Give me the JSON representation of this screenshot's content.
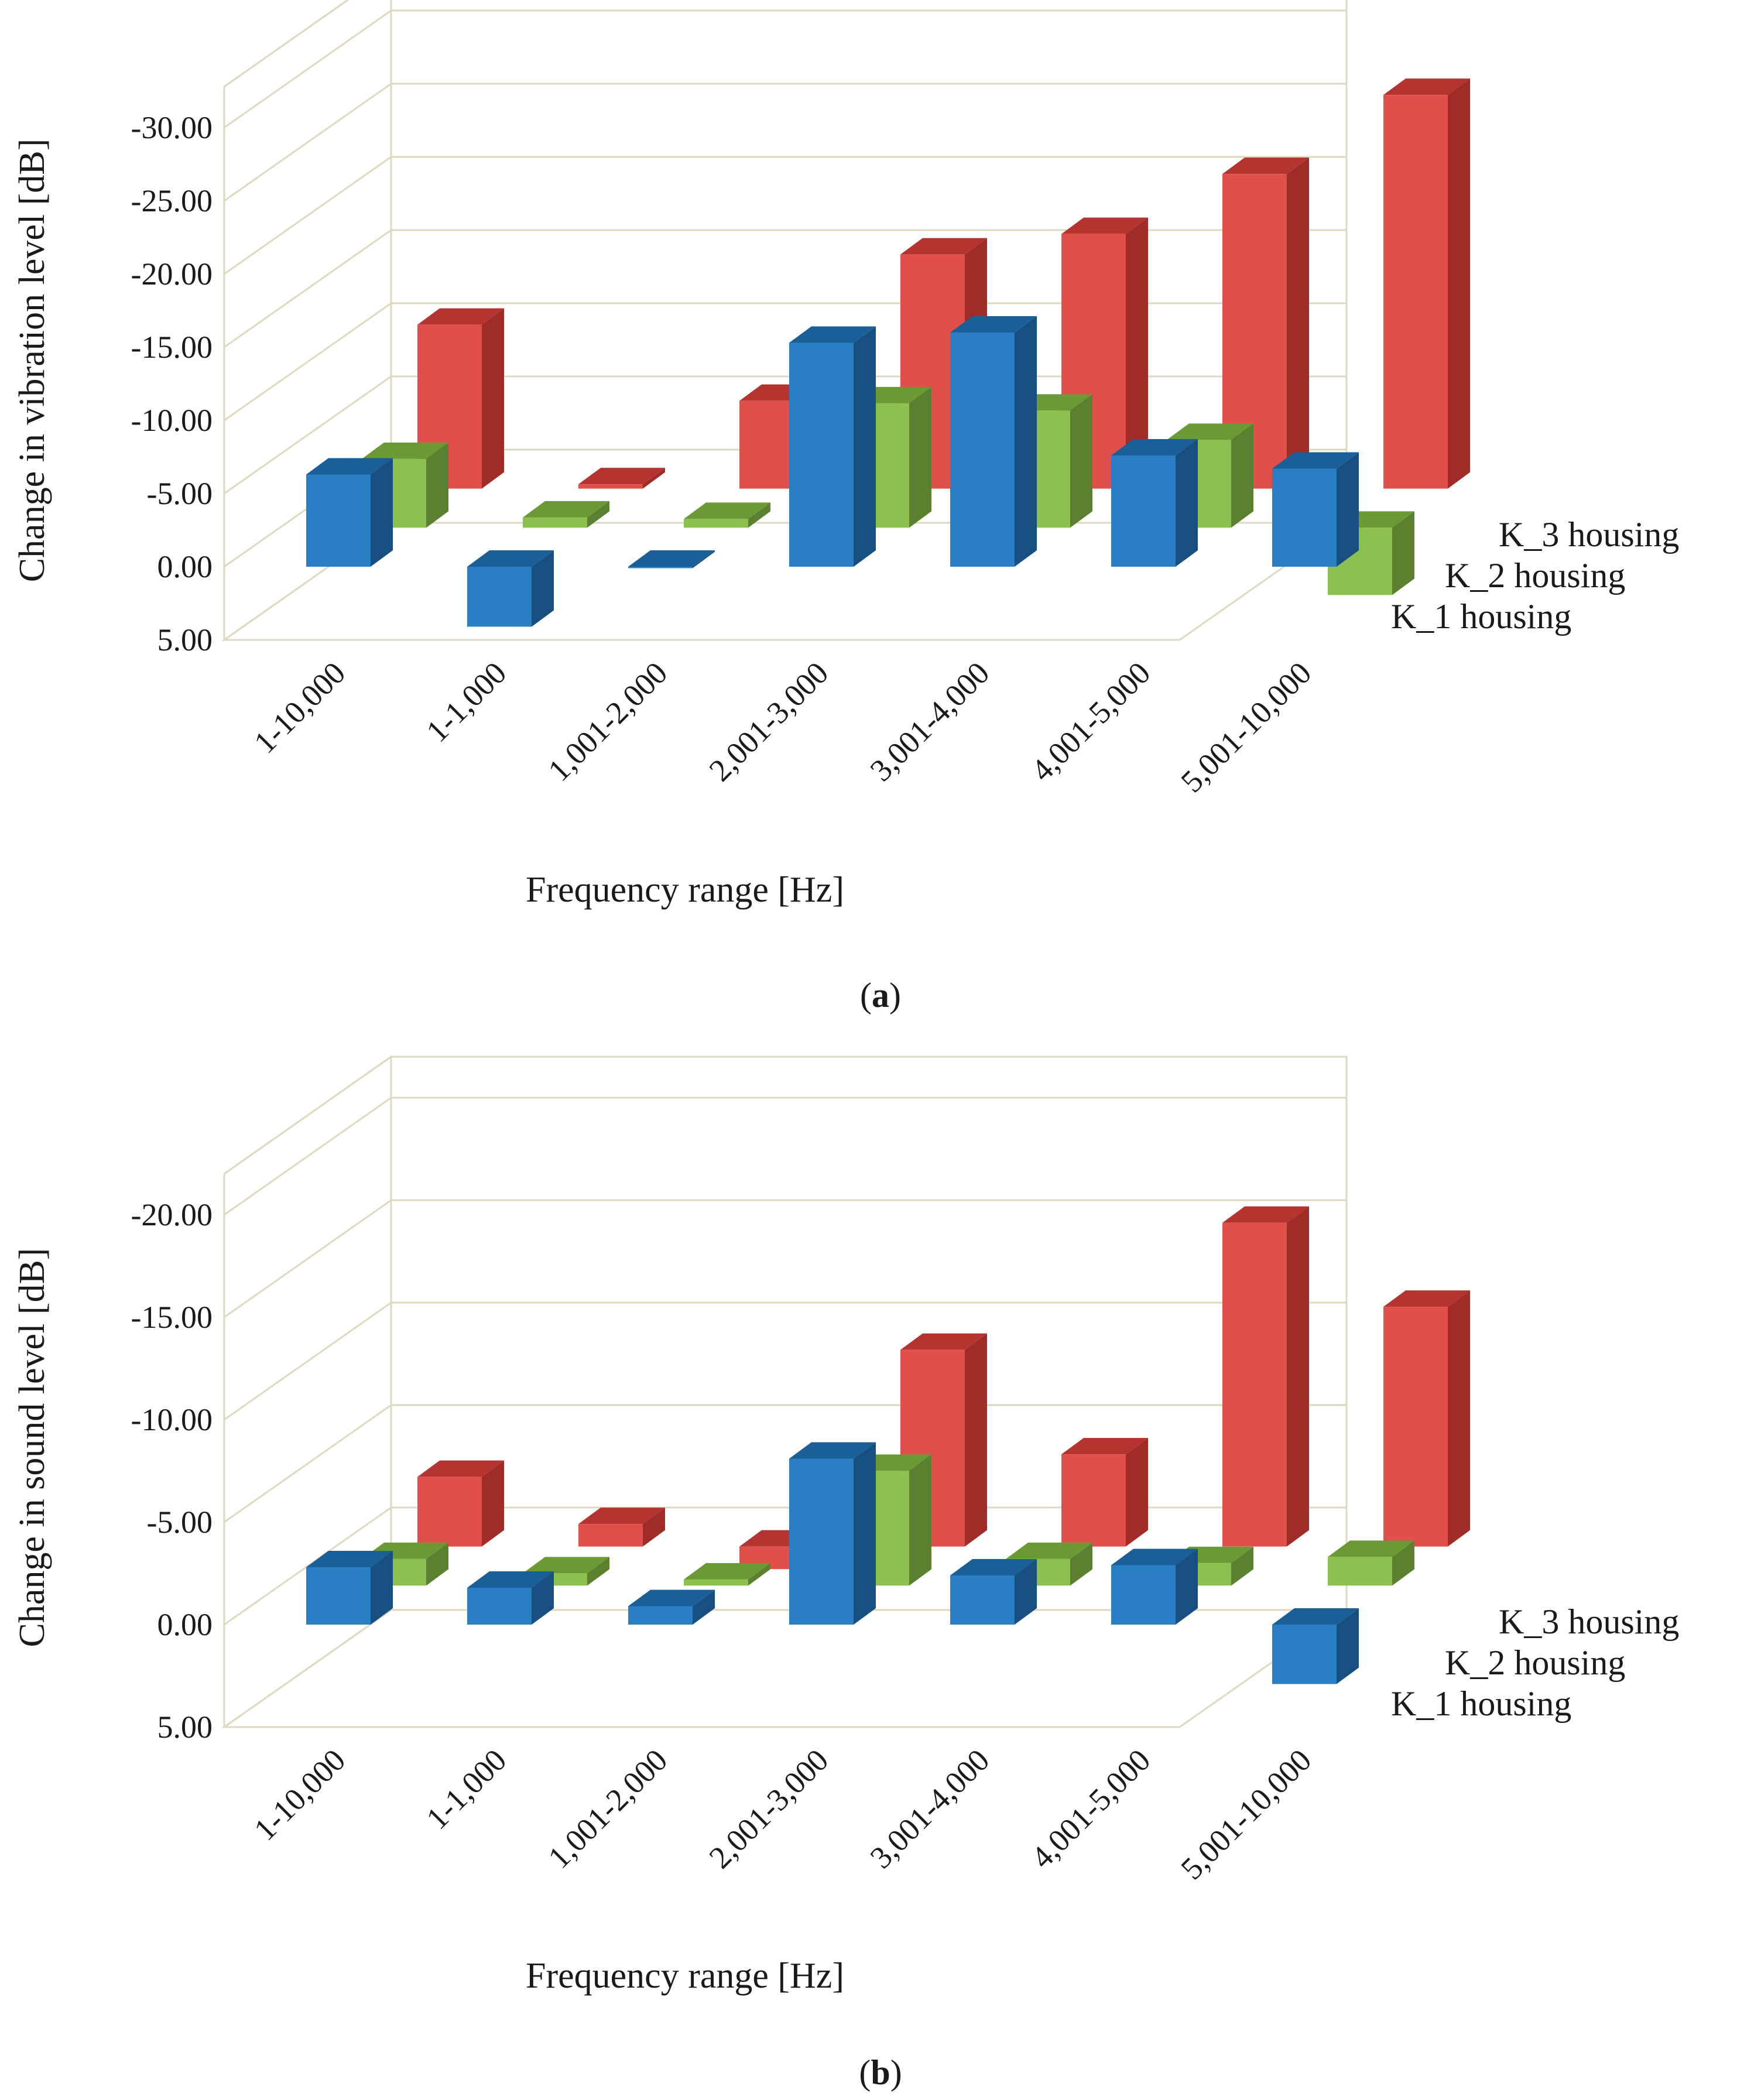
{
  "colors": {
    "K_1 housing": {
      "front": "#2a7fc4",
      "top": "#1b5f99",
      "side": "#174f80"
    },
    "K_2 housing": {
      "front": "#8dc14f",
      "top": "#6b9a35",
      "side": "#5a8030"
    },
    "K_3 housing": {
      "front": "#e04f4a",
      "top": "#b53430",
      "side": "#a02c28"
    },
    "grid": "#ded9bf"
  },
  "chart_data": [
    {
      "type": "bar",
      "panel_label": "a",
      "ylabel": "Change in vibration level [dB]",
      "xlabel": "Frequency range [Hz]",
      "ylim": [
        5,
        -30
      ],
      "yticks": [
        "-30.00",
        "-25.00",
        "-20.00",
        "-15.00",
        "-10.00",
        "-5.00",
        "0.00",
        "5.00"
      ],
      "ytick_values": [
        -30,
        -25,
        -20,
        -15,
        -10,
        -5,
        0,
        5
      ],
      "categories": [
        "1-10,000",
        "1-1,000",
        "1,001-2,000",
        "2,001-3,000",
        "3,001-4,000",
        "4,001-5,000",
        "5,001-10,000"
      ],
      "series": [
        {
          "name": "K_1 housing",
          "values": [
            -6.3,
            4.1,
            0.1,
            -15.3,
            -16.0,
            -7.6,
            -6.7
          ]
        },
        {
          "name": "K_2 housing",
          "values": [
            -4.7,
            -0.7,
            -0.6,
            -8.5,
            -8.0,
            -6.0,
            4.6
          ]
        },
        {
          "name": "K_3 housing",
          "values": [
            -11.2,
            -0.3,
            -6.0,
            -16.0,
            -17.4,
            -21.5,
            -26.9
          ]
        }
      ],
      "legend": [
        "K_3 housing",
        "K_2 housing",
        "K_1 housing"
      ]
    },
    {
      "type": "bar",
      "panel_label": "b",
      "ylabel": "Change in sound level [dB]",
      "xlabel": "Frequency range [Hz]",
      "ylim": [
        5,
        -20
      ],
      "yticks": [
        "-20.00",
        "-15.00",
        "-10.00",
        "-5.00",
        "0.00",
        "5.00"
      ],
      "ytick_values": [
        -20,
        -15,
        -10,
        -5,
        0,
        5
      ],
      "categories": [
        "1-10,000",
        "1-1,000",
        "1,001-2,000",
        "2,001-3,000",
        "3,001-4,000",
        "4,001-5,000",
        "5,001-10,000"
      ],
      "series": [
        {
          "name": "K_1 housing",
          "values": [
            -2.8,
            -1.8,
            -0.9,
            -8.1,
            -2.4,
            -2.9,
            2.9
          ]
        },
        {
          "name": "K_2 housing",
          "values": [
            -1.3,
            -0.6,
            -0.3,
            -5.6,
            -1.3,
            -1.1,
            -1.4
          ]
        },
        {
          "name": "K_3 housing",
          "values": [
            -3.4,
            -1.1,
            1.1,
            -9.6,
            -4.5,
            -15.8,
            -11.7
          ]
        }
      ],
      "legend": [
        "K_3 housing",
        "K_2 housing",
        "K_1 housing"
      ]
    }
  ]
}
